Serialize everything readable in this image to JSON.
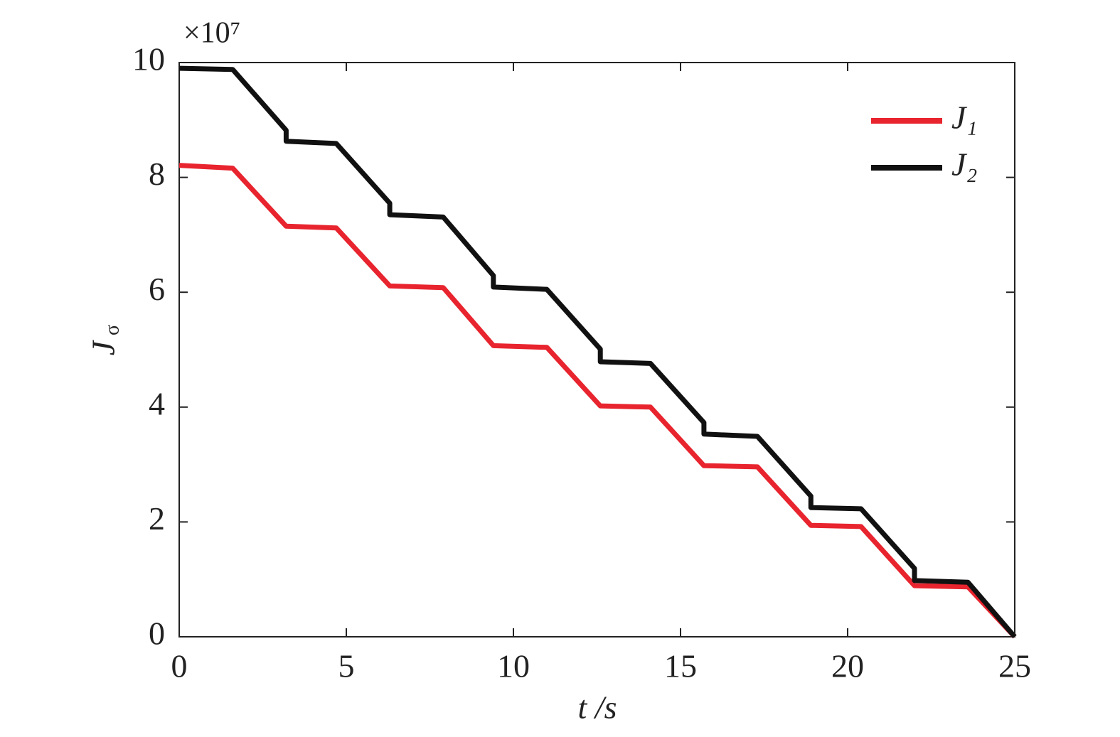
{
  "chart_data": {
    "type": "line",
    "xlabel": "t /s",
    "ylabel": "J",
    "ylabel_subscript": "σ",
    "y_multiplier_label": "×10⁷",
    "xlim": [
      0,
      25
    ],
    "xticks": [
      0,
      5,
      10,
      15,
      20,
      25
    ],
    "ylim": [
      0,
      10
    ],
    "yticks": [
      0,
      2,
      4,
      6,
      8,
      10
    ],
    "legend": "upper right",
    "series": [
      {
        "name": "J₁",
        "color": "#e8242e",
        "x": [
          0,
          1.6,
          3.2,
          4.7,
          6.3,
          7.9,
          9.4,
          11.0,
          12.6,
          14.1,
          15.7,
          17.3,
          18.9,
          20.4,
          22.0,
          23.6,
          25
        ],
        "values": [
          8.21,
          8.16,
          7.15,
          7.12,
          6.11,
          6.08,
          5.07,
          5.04,
          4.02,
          4.0,
          2.98,
          2.96,
          1.94,
          1.92,
          0.89,
          0.87,
          0
        ]
      },
      {
        "name": "J₂",
        "color": "#111111",
        "x": [
          0,
          1.6,
          3.2,
          3.2,
          4.7,
          6.3,
          6.3,
          7.9,
          9.4,
          9.4,
          11.0,
          12.6,
          12.6,
          14.1,
          15.7,
          15.7,
          17.3,
          18.9,
          18.9,
          20.4,
          22.0,
          22.0,
          23.6,
          25
        ],
        "values": [
          9.9,
          9.88,
          8.82,
          8.63,
          8.59,
          7.55,
          7.35,
          7.31,
          6.29,
          6.09,
          6.05,
          5.01,
          4.79,
          4.76,
          3.73,
          3.53,
          3.49,
          2.45,
          2.25,
          2.23,
          1.19,
          0.98,
          0.95,
          0
        ]
      }
    ]
  }
}
